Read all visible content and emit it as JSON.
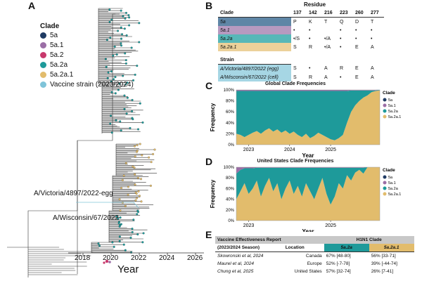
{
  "panels": {
    "a": "A",
    "b": "B",
    "c": "C",
    "d": "D",
    "e": "E"
  },
  "colors": {
    "5a": "#1f3b63",
    "5a.1": "#9b6ea6",
    "5a.2": "#c8386c",
    "5a.2a": "#1e9a9a",
    "5a.2a.1": "#e2bc6c",
    "vaccine": "#7fc4d9"
  },
  "legend": {
    "title": "Clade",
    "items": [
      {
        "label": "5a",
        "color": "#1f3b63"
      },
      {
        "label": "5a.1",
        "color": "#9b6ea6"
      },
      {
        "label": "5a.2",
        "color": "#c8386c"
      },
      {
        "label": "5a.2a",
        "color": "#1e9a9a"
      },
      {
        "label": "5a.2a.1",
        "color": "#e2bc6c"
      },
      {
        "label": "Vaccine strain (2023/2024)",
        "color": "#7fc4d9"
      }
    ]
  },
  "tree": {
    "annotations": [
      "A/Victoria/4897/2022-egg",
      "A/Wisconsin/67/2022"
    ],
    "x_label": "Year",
    "x_ticks": [
      "2018",
      "2020",
      "2022",
      "2024",
      "2026"
    ]
  },
  "residue_table": {
    "header_residue": "Residue",
    "header_clade": "Clade",
    "positions": [
      "137",
      "142",
      "216",
      "223",
      "260",
      "277"
    ],
    "rows": [
      {
        "clade": "5a",
        "values": [
          "P",
          "K",
          "T",
          "Q",
          "D",
          "T"
        ]
      },
      {
        "clade": "5a.1",
        "values": [
          "•",
          "•",
          "",
          "•",
          "•",
          "•"
        ]
      },
      {
        "clade": "5a.2a",
        "values": [
          "•/S",
          "•",
          "•/A",
          "•",
          "•",
          "•"
        ]
      },
      {
        "clade": "5a.2a.1",
        "values": [
          "S",
          "R",
          "•/A",
          "•",
          "E",
          "A"
        ]
      }
    ],
    "header_strain": "Strain",
    "strains": [
      {
        "name": "A/Victoria/4897/2022 (egg)",
        "values": [
          "S",
          "•",
          "A",
          "R",
          "E",
          "A"
        ]
      },
      {
        "name": "A/Wisconsin/67/2022 (cell)",
        "values": [
          "S",
          "R",
          "A",
          "•",
          "E",
          "A"
        ]
      }
    ]
  },
  "chart_data": [
    {
      "type": "area",
      "title": "Global Clade Frequencies",
      "xlabel": "Year",
      "ylabel": "Frequency",
      "x_ticks": [
        "2023",
        "2024",
        "2025"
      ],
      "y_ticks": [
        "0%",
        "20%",
        "40%",
        "60%",
        "80%",
        "100%"
      ],
      "ylim": [
        0,
        100
      ],
      "legend_title": "Clade",
      "legend": [
        "5a",
        "5a.1",
        "5a.2a",
        "5a.2a.1"
      ],
      "x": [
        2022.7,
        2022.8,
        2022.9,
        2023.0,
        2023.1,
        2023.2,
        2023.3,
        2023.4,
        2023.5,
        2023.6,
        2023.7,
        2023.8,
        2023.9,
        2024.0,
        2024.1,
        2024.2,
        2024.3,
        2024.4,
        2024.5,
        2024.6,
        2024.7,
        2024.8,
        2024.9,
        2025.0,
        2025.1,
        2025.2,
        2025.3,
        2025.4,
        2025.5,
        2025.6,
        2025.7,
        2025.8,
        2025.9,
        2026.0,
        2026.1,
        2026.2
      ],
      "series": [
        {
          "name": "5a.2a.1",
          "values": [
            20,
            18,
            14,
            18,
            22,
            25,
            20,
            26,
            30,
            24,
            28,
            22,
            26,
            20,
            24,
            18,
            14,
            20,
            12,
            16,
            22,
            18,
            14,
            10,
            8,
            12,
            18,
            40,
            60,
            72,
            80,
            86,
            90,
            96,
            98,
            99
          ]
        },
        {
          "name": "5a.2a",
          "values": [
            78,
            80,
            84,
            80,
            76,
            73,
            78,
            72,
            68,
            74,
            70,
            76,
            72,
            78,
            74,
            80,
            84,
            78,
            86,
            82,
            76,
            80,
            84,
            88,
            90,
            86,
            80,
            58,
            39,
            27,
            19,
            13,
            9,
            3,
            1,
            1
          ]
        },
        {
          "name": "5a.1",
          "values": [
            2,
            2,
            2,
            2,
            2,
            2,
            2,
            2,
            2,
            2,
            2,
            2,
            2,
            2,
            2,
            2,
            2,
            2,
            2,
            2,
            2,
            2,
            2,
            2,
            2,
            2,
            2,
            2,
            1,
            1,
            1,
            1,
            1,
            1,
            1,
            0
          ]
        },
        {
          "name": "5a",
          "values": [
            0,
            0,
            0,
            0,
            0,
            0,
            0,
            0,
            0,
            0,
            0,
            0,
            0,
            0,
            0,
            0,
            0,
            0,
            0,
            0,
            0,
            0,
            0,
            0,
            0,
            0,
            0,
            0,
            0,
            0,
            0,
            0,
            0,
            0,
            0,
            0
          ]
        }
      ]
    },
    {
      "type": "area",
      "title": "United States Clade Frequencies",
      "xlabel": "Year",
      "ylabel": "Frequency",
      "x_ticks": [
        "2023",
        "2025"
      ],
      "y_ticks": [
        "0%",
        "20%",
        "40%",
        "60%",
        "80%",
        "100%"
      ],
      "ylim": [
        0,
        100
      ],
      "legend_title": "Clade",
      "legend": [
        "5a",
        "5a.1",
        "5a.2a",
        "5a.2a.1"
      ],
      "x": [
        2022.7,
        2022.8,
        2022.9,
        2023.0,
        2023.1,
        2023.2,
        2023.3,
        2023.4,
        2023.5,
        2023.6,
        2023.7,
        2023.8,
        2023.9,
        2024.0,
        2024.1,
        2024.2,
        2024.3,
        2024.4,
        2024.5,
        2024.6,
        2024.7,
        2024.8,
        2024.9,
        2025.0,
        2025.1,
        2025.2,
        2025.3,
        2025.4,
        2025.5,
        2025.6,
        2025.7,
        2025.8,
        2025.9,
        2026.0,
        2026.1,
        2026.2
      ],
      "series": [
        {
          "name": "5a.2a.1",
          "values": [
            40,
            55,
            70,
            50,
            60,
            75,
            45,
            65,
            80,
            55,
            70,
            40,
            60,
            75,
            50,
            65,
            45,
            70,
            55,
            40,
            60,
            80,
            50,
            30,
            45,
            70,
            60,
            85,
            75,
            90,
            95,
            88,
            100,
            100,
            100,
            100
          ]
        },
        {
          "name": "5a.2a",
          "values": [
            48,
            40,
            28,
            48,
            38,
            24,
            54,
            34,
            19,
            44,
            29,
            59,
            39,
            24,
            49,
            34,
            54,
            29,
            44,
            59,
            39,
            19,
            49,
            69,
            54,
            29,
            39,
            14,
            24,
            9,
            4,
            11,
            0,
            0,
            0,
            0
          ]
        },
        {
          "name": "5a.1",
          "values": [
            12,
            5,
            2,
            2,
            2,
            1,
            1,
            1,
            1,
            1,
            1,
            1,
            1,
            1,
            1,
            1,
            1,
            1,
            1,
            1,
            1,
            1,
            1,
            1,
            1,
            1,
            1,
            1,
            1,
            1,
            1,
            1,
            0,
            0,
            0,
            0
          ]
        },
        {
          "name": "5a",
          "values": [
            0,
            0,
            0,
            0,
            0,
            0,
            0,
            0,
            0,
            0,
            0,
            0,
            0,
            0,
            0,
            0,
            0,
            0,
            0,
            0,
            0,
            0,
            0,
            0,
            0,
            0,
            0,
            0,
            0,
            0,
            0,
            0,
            0,
            0,
            0,
            0
          ]
        }
      ]
    }
  ],
  "ve_table": {
    "title": "Vaccine Effectiveness Report",
    "season": "(2023/2024 Season)",
    "location_hdr": "Location",
    "clade_hdr": "H1N1 Clade",
    "col_a": "5a.2a",
    "col_b": "5a.2a.1",
    "rows": [
      {
        "study": "Skowronski et al, 2024",
        "location": "Canada",
        "a": "67% [48-80]",
        "b": "56% [33-71]"
      },
      {
        "study": "Maurel et al, 2024",
        "location": "Europe",
        "a": "52% [-7-78]",
        "b": "39% [-44-74]"
      },
      {
        "study": "Chung et al, 2025",
        "location": "United States",
        "a": "57% [32-74]",
        "b": "26% [7-41]"
      }
    ]
  }
}
